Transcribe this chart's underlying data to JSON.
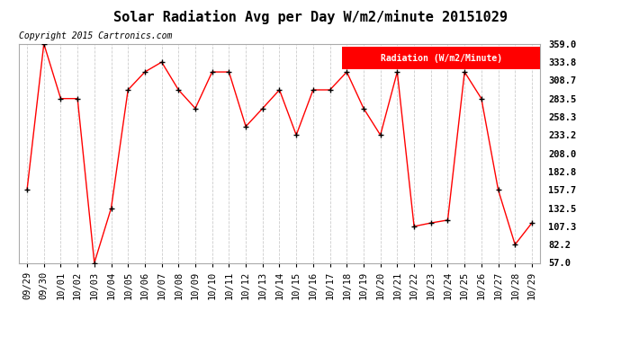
{
  "title": "Solar Radiation Avg per Day W/m2/minute 20151029",
  "copyright": "Copyright 2015 Cartronics.com",
  "legend_label": "Radiation (W/m2/Minute)",
  "x_labels": [
    "09/29",
    "09/30",
    "10/01",
    "10/02",
    "10/03",
    "10/04",
    "10/05",
    "10/06",
    "10/07",
    "10/08",
    "10/09",
    "10/10",
    "10/11",
    "10/12",
    "10/13",
    "10/14",
    "10/15",
    "10/16",
    "10/17",
    "10/18",
    "10/19",
    "10/20",
    "10/21",
    "10/22",
    "10/23",
    "10/24",
    "10/25",
    "10/26",
    "10/27",
    "10/28",
    "10/29"
  ],
  "y_values": [
    157.7,
    359.0,
    283.5,
    283.5,
    57.0,
    132.5,
    295.5,
    320.2,
    333.8,
    295.5,
    270.0,
    320.2,
    320.2,
    245.0,
    270.0,
    295.5,
    233.2,
    295.5,
    295.5,
    320.2,
    270.0,
    233.2,
    320.2,
    107.3,
    112.0,
    116.0,
    320.2,
    283.5,
    157.7,
    82.2,
    112.0
  ],
  "y_min": 57.0,
  "y_max": 359.0,
  "y_ticks": [
    57.0,
    82.2,
    107.3,
    132.5,
    157.7,
    182.8,
    208.0,
    233.2,
    258.3,
    283.5,
    308.7,
    333.8,
    359.0
  ],
  "line_color": "red",
  "marker_color": "black",
  "bg_color": "#ffffff",
  "plot_bg_color": "#ffffff",
  "grid_color": "#cccccc",
  "title_fontsize": 11,
  "copyright_fontsize": 7,
  "tick_fontsize": 7.5,
  "legend_fontsize": 7
}
